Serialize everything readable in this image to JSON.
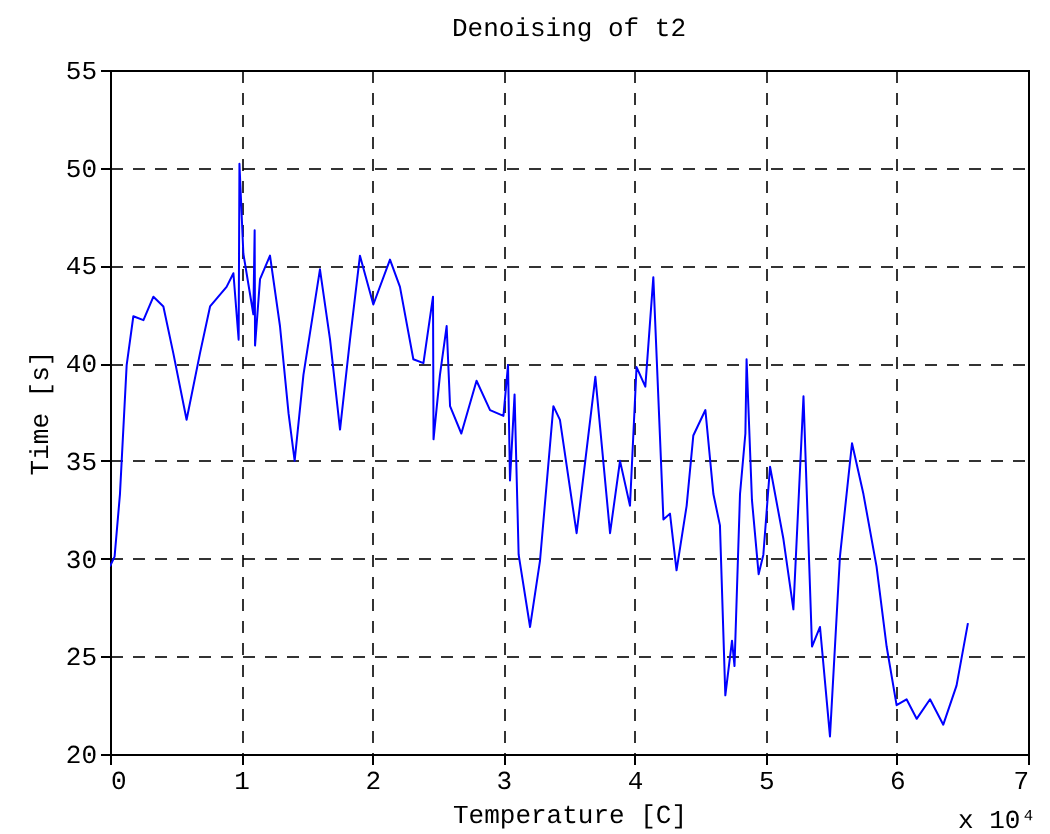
{
  "chart_data": {
    "type": "line",
    "title": "Denoising of  t2",
    "xlabel": "Temperature [C]",
    "ylabel": "Time [s]",
    "annotations": [
      "x 10⁴"
    ],
    "xlim": [
      0,
      7
    ],
    "ylim": [
      20,
      55
    ],
    "xticks": [
      0,
      1,
      2,
      3,
      4,
      5,
      6,
      7
    ],
    "yticks": [
      20,
      25,
      30,
      35,
      40,
      45,
      50,
      55
    ],
    "grid": true,
    "line_style": "solid",
    "x": [
      0,
      0.035,
      0.076,
      0.127,
      0.178,
      0.255,
      0.331,
      0.407,
      0.483,
      0.584,
      0.686,
      0.763,
      0.889,
      0.941,
      0.981,
      0.987,
      1.017,
      1.093,
      1.103,
      1.106,
      1.144,
      1.22,
      1.296,
      1.362,
      1.408,
      1.475,
      1.601,
      1.678,
      1.754,
      1.83,
      1.906,
      2.008,
      2.135,
      2.211,
      2.313,
      2.39,
      2.463,
      2.467,
      2.516,
      2.567,
      2.593,
      2.679,
      2.795,
      2.898,
      3.0,
      3.035,
      3.05,
      3.085,
      3.116,
      3.203,
      3.279,
      3.381,
      3.431,
      3.558,
      3.701,
      3.813,
      3.889,
      3.965,
      4.015,
      4.082,
      4.143,
      4.22,
      4.27,
      4.32,
      4.397,
      4.448,
      4.54,
      4.601,
      4.651,
      4.692,
      4.743,
      4.762,
      4.804,
      4.845,
      4.854,
      4.895,
      4.946,
      4.982,
      5.033,
      5.135,
      5.211,
      5.288,
      5.353,
      5.414,
      5.49,
      5.566,
      5.658,
      5.745,
      5.845,
      5.922,
      5.998,
      6.074,
      6.151,
      6.253,
      6.354,
      6.455,
      6.542
    ],
    "series": [
      {
        "color": "#0000ff",
        "values": [
          29.6,
          30.1,
          33.3,
          39.9,
          42.4,
          42.2,
          43.4,
          42.9,
          40.5,
          37.1,
          40.5,
          42.9,
          43.9,
          44.6,
          41.2,
          50.2,
          45.6,
          42.5,
          46.8,
          40.9,
          44.3,
          45.5,
          41.9,
          37.4,
          35.0,
          39.4,
          44.8,
          41.2,
          36.6,
          41.2,
          45.5,
          43.0,
          45.3,
          43.9,
          40.2,
          40.0,
          43.4,
          36.1,
          39.4,
          41.9,
          37.8,
          36.4,
          39.1,
          37.6,
          37.3,
          39.9,
          34.0,
          38.4,
          30.2,
          26.5,
          29.9,
          37.8,
          37.1,
          31.3,
          39.3,
          31.3,
          35.0,
          32.7,
          39.8,
          38.8,
          44.4,
          32.0,
          32.3,
          29.4,
          32.7,
          36.3,
          37.6,
          33.3,
          31.7,
          23.0,
          25.8,
          24.5,
          33.3,
          36.4,
          40.2,
          33.0,
          29.2,
          30.2,
          34.7,
          31.0,
          27.4,
          38.3,
          25.5,
          26.5,
          20.9,
          30.1,
          35.9,
          33.3,
          29.6,
          25.5,
          22.5,
          22.8,
          21.8,
          22.8,
          21.5,
          23.5,
          26.7
        ]
      }
    ]
  }
}
